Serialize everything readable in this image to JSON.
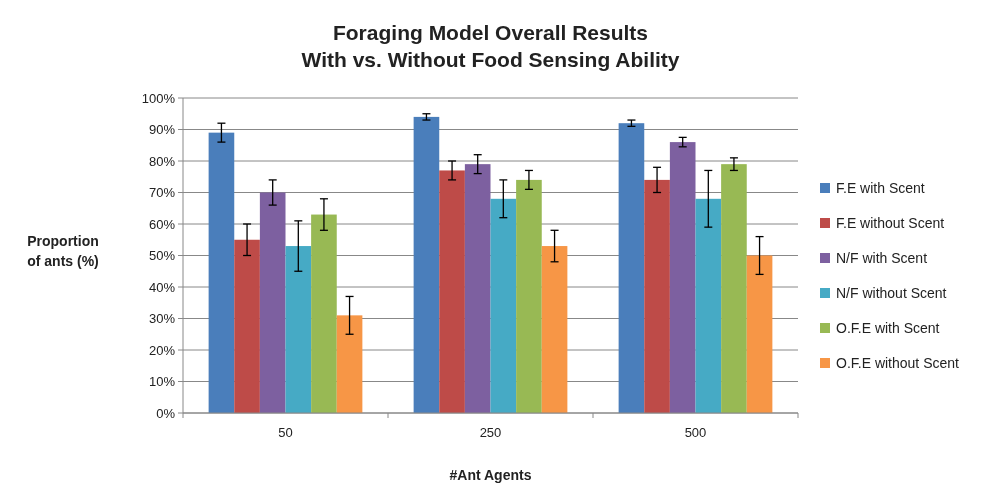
{
  "chart_data": {
    "type": "bar",
    "title": "Foraging Model Overall Results\nWith vs. Without  Food Sensing Ability",
    "xlabel": "#Ant Agents",
    "ylabel": "Proportion\nof ants (%)",
    "categories": [
      "50",
      "250",
      "500"
    ],
    "series": [
      {
        "name": "F.E with Scent",
        "color": "#4a7ebb",
        "values": [
          89,
          94,
          92
        ],
        "errors": [
          3,
          1,
          1
        ]
      },
      {
        "name": "F.E without Scent",
        "color": "#be4b48",
        "values": [
          55,
          77,
          74
        ],
        "errors": [
          5,
          3,
          4
        ]
      },
      {
        "name": "N/F with Scent",
        "color": "#7d60a0",
        "values": [
          70,
          79,
          86
        ],
        "errors": [
          4,
          3,
          1.5
        ]
      },
      {
        "name": "N/F without Scent",
        "color": "#46aac5",
        "values": [
          53,
          68,
          68
        ],
        "errors": [
          8,
          6,
          9
        ]
      },
      {
        "name": "O.F.E with Scent",
        "color": "#98b954",
        "values": [
          63,
          74,
          79
        ],
        "errors": [
          5,
          3,
          2
        ]
      },
      {
        "name": "O.F.E without Scent",
        "color": "#f79646",
        "values": [
          31,
          53,
          50
        ],
        "errors": [
          6,
          5,
          6
        ]
      }
    ],
    "ylim": [
      0,
      100
    ],
    "yticks": [
      {
        "value": 0,
        "label": "0%"
      },
      {
        "value": 10,
        "label": "10%"
      },
      {
        "value": 20,
        "label": "20%"
      },
      {
        "value": 30,
        "label": "30%"
      },
      {
        "value": 40,
        "label": "40%"
      },
      {
        "value": 50,
        "label": "50%"
      },
      {
        "value": 60,
        "label": "60%"
      },
      {
        "value": 70,
        "label": "70%"
      },
      {
        "value": 80,
        "label": "80%"
      },
      {
        "value": 90,
        "label": "90%"
      },
      {
        "value": 100,
        "label": "100%"
      }
    ],
    "grid": "y",
    "legend": "right"
  }
}
